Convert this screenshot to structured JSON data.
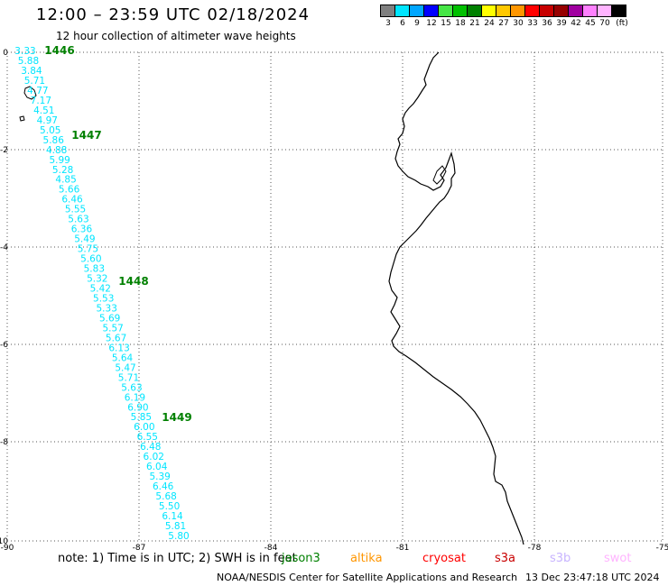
{
  "header": {
    "title": "12:00 – 23:59 UTC 02/18/2024",
    "subtitle": "12 hour collection of altimeter wave heights"
  },
  "legend": {
    "colors": [
      "#808080",
      "#00e5ff",
      "#00a6ff",
      "#0000ff",
      "#46e646",
      "#00c000",
      "#008000",
      "#ffff00",
      "#ffc800",
      "#ff9600",
      "#ff0000",
      "#c80000",
      "#960000",
      "#a000a0",
      "#ff80ff",
      "#ffb4ff",
      "#000000"
    ],
    "labels": [
      "3",
      "6",
      "9",
      "12",
      "15",
      "18",
      "21",
      "24",
      "27",
      "30",
      "33",
      "36",
      "39",
      "42",
      "45",
      "70"
    ],
    "unit": "(ft)"
  },
  "axes": {
    "x_ticks": [
      "-90",
      "-87",
      "-84",
      "-81",
      "-78",
      "-75"
    ],
    "y_ticks": [
      "0",
      "-2",
      "-4",
      "-6",
      "-8",
      "-10"
    ]
  },
  "track": {
    "color": "#00e5ff",
    "values": [
      "3.33",
      "5.88",
      "3.84",
      "5.71",
      "4.77",
      "7.17",
      "4.51",
      "4.97",
      "5.05",
      "5.86",
      "4.88",
      "5.99",
      "5.28",
      "4.85",
      "5.66",
      "6.46",
      "5.55",
      "5.63",
      "6.36",
      "5.49",
      "5.75",
      "5.60",
      "5.83",
      "5.32",
      "5.42",
      "5.53",
      "5.33",
      "5.69",
      "5.57",
      "5.67",
      "6.13",
      "5.64",
      "5.47",
      "5.71",
      "5.63",
      "6.19",
      "6.90",
      "5.85",
      "6.00",
      "6.55",
      "6.48",
      "6.02",
      "6.04",
      "5.39",
      "6.46",
      "5.68",
      "5.50",
      "6.14",
      "5.81",
      "5.80"
    ],
    "time_labels": [
      "1446",
      "1447",
      "1448",
      "1449"
    ],
    "time_color": "#008000"
  },
  "footer": {
    "note": "note:  1) Time is in UTC;  2) SWH is in feet",
    "satellites": [
      {
        "name": "jason3",
        "color": "#008000"
      },
      {
        "name": "altika",
        "color": "#ff9600"
      },
      {
        "name": "cryosat",
        "color": "#ff0000"
      },
      {
        "name": "s3a",
        "color": "#c80000"
      },
      {
        "name": "s3b",
        "color": "#c8b4ff"
      },
      {
        "name": "swot",
        "color": "#ffb4ff"
      }
    ],
    "credit": "NOAA/NESDIS Center for Satellite Applications and Research",
    "timestamp": "13 Dec 23:47:18 UTC 2024"
  }
}
